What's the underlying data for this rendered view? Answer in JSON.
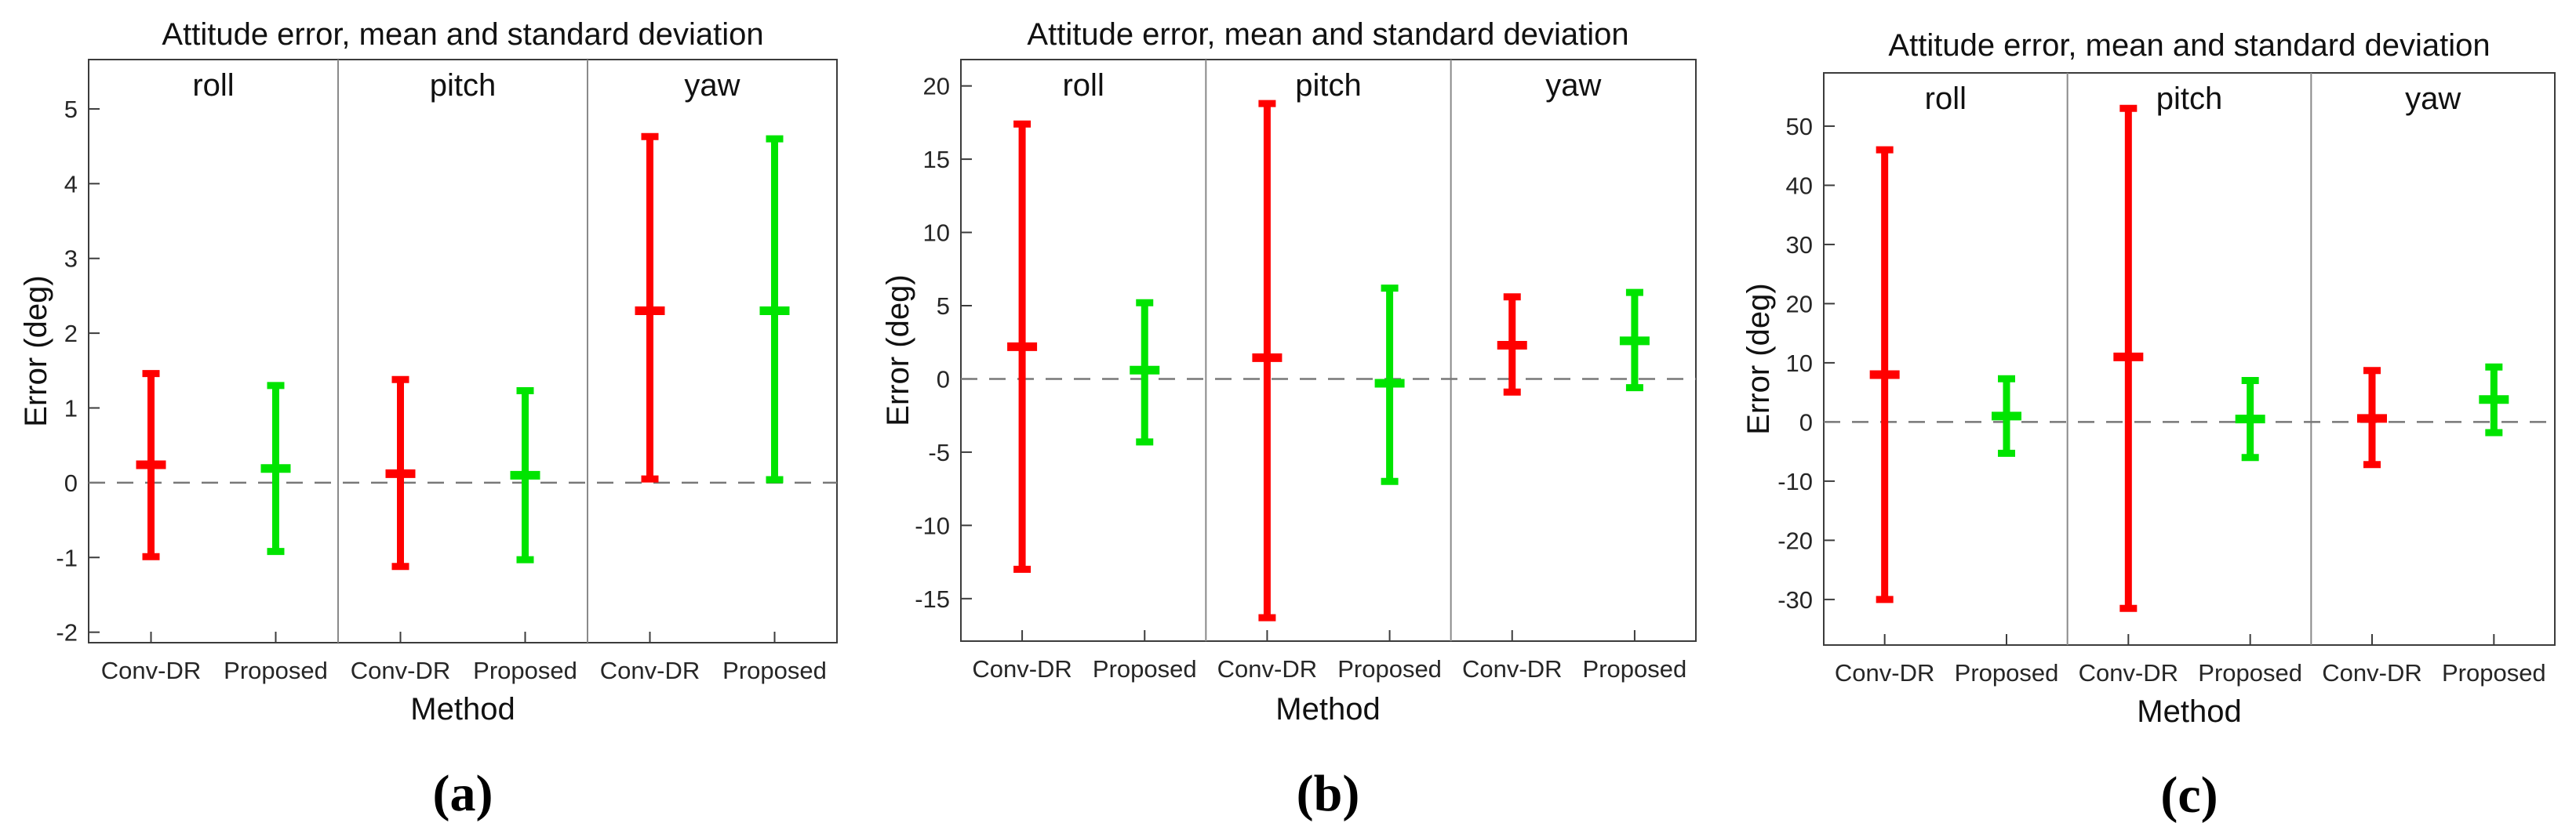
{
  "chart_data": [
    {
      "type": "errorbar",
      "panel_label": "(a)",
      "title": "Attitude error, mean and standard deviation",
      "xlabel": "Method",
      "ylabel": "Error (deg)",
      "sections": [
        "roll",
        "pitch",
        "yaw"
      ],
      "categories": [
        "Conv-DR",
        "Proposed",
        "Conv-DR",
        "Proposed",
        "Conv-DR",
        "Proposed"
      ],
      "ylim": [
        -2.14,
        5.66
      ],
      "yticks": [
        -2,
        -1,
        0,
        1,
        2,
        3,
        4,
        5
      ],
      "zero_line": true,
      "grid": false,
      "legend": null,
      "series": [
        {
          "name": "Conv-DR",
          "color": "#ff0000",
          "points": [
            {
              "section": "roll",
              "mean": 0.24,
              "upper": 1.46,
              "lower": -0.99
            },
            {
              "section": "pitch",
              "mean": 0.12,
              "upper": 1.38,
              "lower": -1.12
            },
            {
              "section": "yaw",
              "mean": 2.3,
              "upper": 4.63,
              "lower": 0.05
            }
          ]
        },
        {
          "name": "Proposed",
          "color": "#00e400",
          "points": [
            {
              "section": "roll",
              "mean": 0.19,
              "upper": 1.3,
              "lower": -0.92
            },
            {
              "section": "pitch",
              "mean": 0.1,
              "upper": 1.23,
              "lower": -1.03
            },
            {
              "section": "yaw",
              "mean": 2.3,
              "upper": 4.6,
              "lower": 0.04
            }
          ]
        }
      ]
    },
    {
      "type": "errorbar",
      "panel_label": "(b)",
      "title": "Attitude error, mean and standard deviation",
      "xlabel": "Method",
      "ylabel": "Error (deg)",
      "sections": [
        "roll",
        "pitch",
        "yaw"
      ],
      "categories": [
        "Conv-DR",
        "Proposed",
        "Conv-DR",
        "Proposed",
        "Conv-DR",
        "Proposed"
      ],
      "ylim": [
        -17.9,
        21.8
      ],
      "yticks": [
        -15,
        -10,
        -5,
        0,
        5,
        10,
        15,
        20
      ],
      "zero_line": true,
      "grid": false,
      "legend": null,
      "series": [
        {
          "name": "Conv-DR",
          "color": "#ff0000",
          "points": [
            {
              "section": "roll",
              "mean": 2.2,
              "upper": 17.4,
              "lower": -13.0
            },
            {
              "section": "pitch",
              "mean": 1.45,
              "upper": 18.8,
              "lower": -16.3
            },
            {
              "section": "yaw",
              "mean": 2.3,
              "upper": 5.6,
              "lower": -0.9
            }
          ]
        },
        {
          "name": "Proposed",
          "color": "#00e400",
          "points": [
            {
              "section": "roll",
              "mean": 0.6,
              "upper": 5.2,
              "lower": -4.3
            },
            {
              "section": "pitch",
              "mean": -0.3,
              "upper": 6.2,
              "lower": -7.0
            },
            {
              "section": "yaw",
              "mean": 2.6,
              "upper": 5.9,
              "lower": -0.6
            }
          ]
        }
      ]
    },
    {
      "type": "errorbar",
      "panel_label": "(c)",
      "title": "Attitude error, mean and standard deviation",
      "xlabel": "Method",
      "ylabel": "Error (deg)",
      "sections": [
        "roll",
        "pitch",
        "yaw"
      ],
      "categories": [
        "Conv-DR",
        "Proposed",
        "Conv-DR",
        "Proposed",
        "Conv-DR",
        "Proposed"
      ],
      "ylim": [
        -37.7,
        59.0
      ],
      "yticks": [
        -30,
        -20,
        -10,
        0,
        10,
        20,
        30,
        40,
        50
      ],
      "zero_line": true,
      "grid": false,
      "legend": null,
      "series": [
        {
          "name": "Conv-DR",
          "color": "#ff0000",
          "points": [
            {
              "section": "roll",
              "mean": 8.0,
              "upper": 46.0,
              "lower": -30.0
            },
            {
              "section": "pitch",
              "mean": 11.0,
              "upper": 53.0,
              "lower": -31.5
            },
            {
              "section": "yaw",
              "mean": 0.6,
              "upper": 8.7,
              "lower": -7.2
            }
          ]
        },
        {
          "name": "Proposed",
          "color": "#00e400",
          "points": [
            {
              "section": "roll",
              "mean": 1.0,
              "upper": 7.3,
              "lower": -5.3
            },
            {
              "section": "pitch",
              "mean": 0.5,
              "upper": 7.0,
              "lower": -6.0
            },
            {
              "section": "yaw",
              "mean": 3.8,
              "upper": 9.3,
              "lower": -1.8
            }
          ]
        }
      ]
    }
  ],
  "style": {
    "axis_color": "#3c3c3c",
    "separator_color": "#8a8a8a",
    "zero_line_color": "#787878",
    "text_color": "#111111"
  }
}
